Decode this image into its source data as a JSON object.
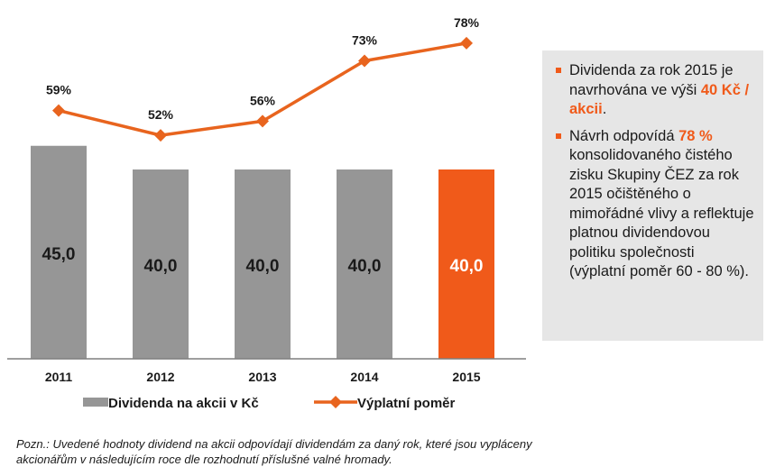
{
  "chart_data": {
    "type": "bar",
    "categories": [
      "2011",
      "2012",
      "2013",
      "2014",
      "2015"
    ],
    "ylim": [
      0,
      50
    ],
    "series": [
      {
        "name": "Dividenda na akcii v Kč",
        "kind": "bar",
        "values": [
          45.0,
          40.0,
          40.0,
          40.0,
          40.0
        ],
        "labels": [
          "45,0",
          "40,0",
          "40,0",
          "40,0",
          "40,0"
        ],
        "colors": [
          "#969696",
          "#969696",
          "#969696",
          "#969696",
          "#f05a1a"
        ]
      },
      {
        "name": "Výplatní poměr",
        "kind": "line",
        "values": [
          59,
          52,
          56,
          73,
          78
        ],
        "labels": [
          "59%",
          "52%",
          "56%",
          "73%",
          "78%"
        ],
        "color": "#e8641e",
        "ylim": [
          50,
          80
        ]
      }
    ],
    "legend_position": "bottom",
    "grid": false
  },
  "info": {
    "bullet1": {
      "pre": "Dividenda za rok 2015 je navrhována ve výši",
      "highlight": "40 Kč / akcii",
      "post": "."
    },
    "bullet2": {
      "pre": "Návrh odpovídá",
      "highlight": "78 %",
      "post": "konsolidovaného čistého zisku Skupiny ČEZ za rok 2015 očištěného o mimořádné vlivy a reflektuje platnou dividendovou politiku společnosti (výplatní poměr 60 - 80 %)."
    }
  },
  "note": {
    "text": "Pozn.: Uvedené hodnoty dividend na akcii odpovídají dividendám za daný rok, které jsou vypláceny akcionářům v následujícím roce dle rozhodnutí příslušné valné hromady."
  }
}
